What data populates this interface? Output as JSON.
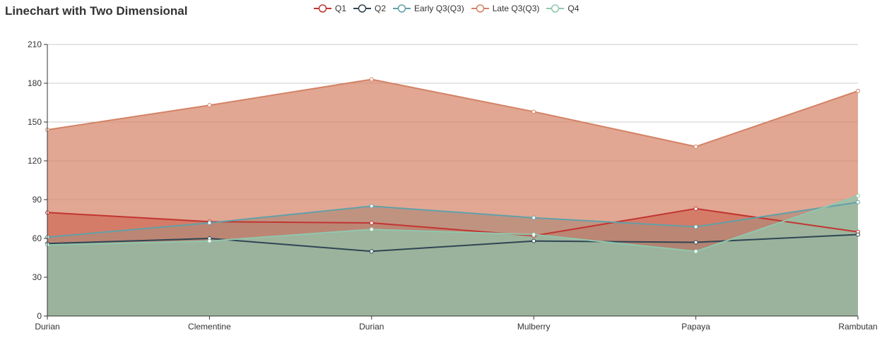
{
  "chart_data": {
    "type": "area",
    "title": "Linechart with Two Dimensional",
    "xlabel": "",
    "ylabel": "",
    "categories": [
      "Durian",
      "Clementine",
      "Durian",
      "Mulberry",
      "Papaya",
      "Rambutan"
    ],
    "ylim": [
      0,
      210
    ],
    "yticks": [
      0,
      30,
      60,
      90,
      120,
      150,
      180,
      210
    ],
    "grid": true,
    "legend_position": "top-center",
    "series": [
      {
        "name": "Q1",
        "values": [
          80,
          73,
          72,
          62,
          83,
          65
        ],
        "color": "#c23531"
      },
      {
        "name": "Q2",
        "values": [
          56,
          60,
          50,
          58,
          57,
          63
        ],
        "color": "#2f4554"
      },
      {
        "name": "Early Q3(Q3)",
        "values": [
          61,
          72,
          85,
          76,
          69,
          88
        ],
        "color": "#61a0a8"
      },
      {
        "name": "Late Q3(Q3)",
        "values": [
          144,
          163,
          183,
          158,
          131,
          174
        ],
        "color": "#d48265"
      },
      {
        "name": "Q4",
        "values": [
          55,
          58,
          67,
          63,
          50,
          93
        ],
        "color": "#91c7ae"
      }
    ]
  }
}
